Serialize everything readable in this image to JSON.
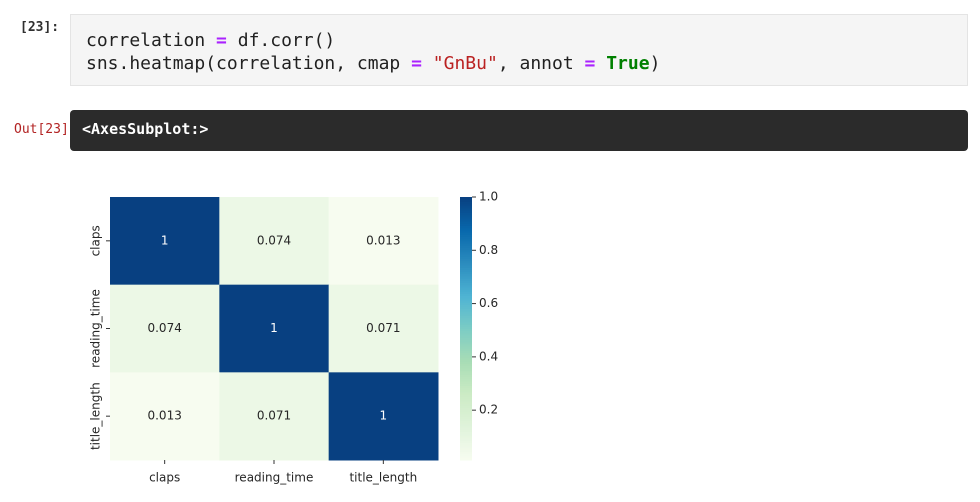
{
  "input_prompt": "[23]:",
  "code": [
    [
      {
        "text": "correlation ",
        "color": "#212121"
      },
      {
        "text": "=",
        "color": "#aa22ff",
        "bold": true
      },
      {
        "text": " df.corr()",
        "color": "#212121"
      }
    ],
    [
      {
        "text": "sns.heatmap(correlation, cmap ",
        "color": "#212121"
      },
      {
        "text": "=",
        "color": "#aa22ff",
        "bold": true
      },
      {
        "text": " ",
        "color": "#212121"
      },
      {
        "text": "\"GnBu\"",
        "color": "#ba2121"
      },
      {
        "text": ", annot ",
        "color": "#212121"
      },
      {
        "text": "=",
        "color": "#aa22ff",
        "bold": true
      },
      {
        "text": " ",
        "color": "#212121"
      },
      {
        "text": "True",
        "color": "#008000",
        "bold": true
      },
      {
        "text": ")",
        "color": "#212121"
      }
    ]
  ],
  "output_prompt": "Out[23]:",
  "output_text": "<AxesSubplot:>",
  "chart_data": {
    "type": "heatmap",
    "cmap": "GnBu",
    "x_categories": [
      "claps",
      "reading_time",
      "title_length"
    ],
    "y_categories": [
      "claps",
      "reading_time",
      "title_length"
    ],
    "values": [
      [
        1,
        0.074,
        0.013
      ],
      [
        0.074,
        1,
        0.071
      ],
      [
        0.013,
        0.071,
        1
      ]
    ],
    "clim": [
      0.013,
      1
    ],
    "cticks": [
      0.2,
      0.4,
      0.6,
      {
        "value": 0.8,
        "label": "0.8"
      },
      {
        "value": 1,
        "label": "1.0"
      }
    ]
  }
}
